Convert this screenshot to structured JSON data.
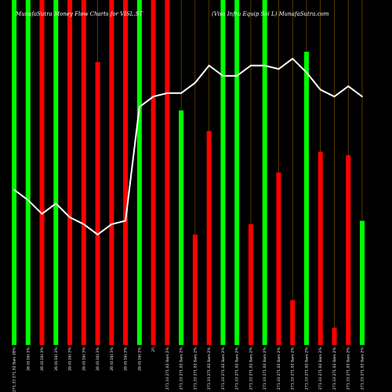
{
  "chart_data": {
    "type": "bar",
    "title_left": "MunafaSutra Money Flow Charts for VISL.ST",
    "title_right": "(Visa Infra Equip Sol L) MunafaSutra.com",
    "categories": [
      "271.33 271.02 Bars 28%",
      "26 (0.16) 3%",
      "26 (0.16) 3%",
      "26 (0.16) 3%",
      "26 (0.16) 3%",
      "26 (0.16) 3%",
      "26 (0.16) 3%",
      "26 (0.16) 3%",
      "26 (0.16) 3%",
      "26 (0.16) 3%",
      "25",
      "271.33 271.02 Bars 2%",
      "271.33 271.02 Bars 2%",
      "271.33 271.02 Bars 2%",
      "271.33 271.02 Bars 2%",
      "271.33 271.02 Bars 2%",
      "271.33 271.02 Bars 2%",
      "271.33 271.02 Bars 2%",
      "271.33 271.02 Bars 2%",
      "271.33 271.02 Bars 2%",
      "271.33 271.02 Bars 2%",
      "271.33 271.02 Bars 2%",
      "271.33 271.02 Bars 2%",
      "271.33 271.02 Bars 2%",
      "271.33 271.02 Bars 2%",
      "271.33 271.02 Bars 2%"
    ],
    "bars": [
      {
        "color": "green",
        "value": 100
      },
      {
        "color": "green",
        "value": 100
      },
      {
        "color": "red",
        "value": 100
      },
      {
        "color": "green",
        "value": 100
      },
      {
        "color": "red",
        "value": 100
      },
      {
        "color": "red",
        "value": 100
      },
      {
        "color": "red",
        "value": 82
      },
      {
        "color": "red",
        "value": 100
      },
      {
        "color": "red",
        "value": 100
      },
      {
        "color": "green",
        "value": 100
      },
      {
        "color": "red",
        "value": 100
      },
      {
        "color": "red",
        "value": 100
      },
      {
        "color": "green",
        "value": 68
      },
      {
        "color": "red",
        "value": 32
      },
      {
        "color": "red",
        "value": 62
      },
      {
        "color": "green",
        "value": 100
      },
      {
        "color": "green",
        "value": 100
      },
      {
        "color": "red",
        "value": 35
      },
      {
        "color": "green",
        "value": 100
      },
      {
        "color": "red",
        "value": 50
      },
      {
        "color": "red",
        "value": 13
      },
      {
        "color": "green",
        "value": 85
      },
      {
        "color": "red",
        "value": 56
      },
      {
        "color": "red",
        "value": 5
      },
      {
        "color": "red",
        "value": 55
      },
      {
        "color": "green",
        "value": 36
      }
    ],
    "line_values": [
      45,
      42,
      38,
      41,
      37,
      35,
      32,
      35,
      36,
      69,
      72,
      73,
      73,
      76,
      81,
      78,
      78,
      81,
      81,
      80,
      83,
      79,
      74,
      72,
      75,
      72
    ],
    "ylim": [
      0,
      100
    ]
  }
}
